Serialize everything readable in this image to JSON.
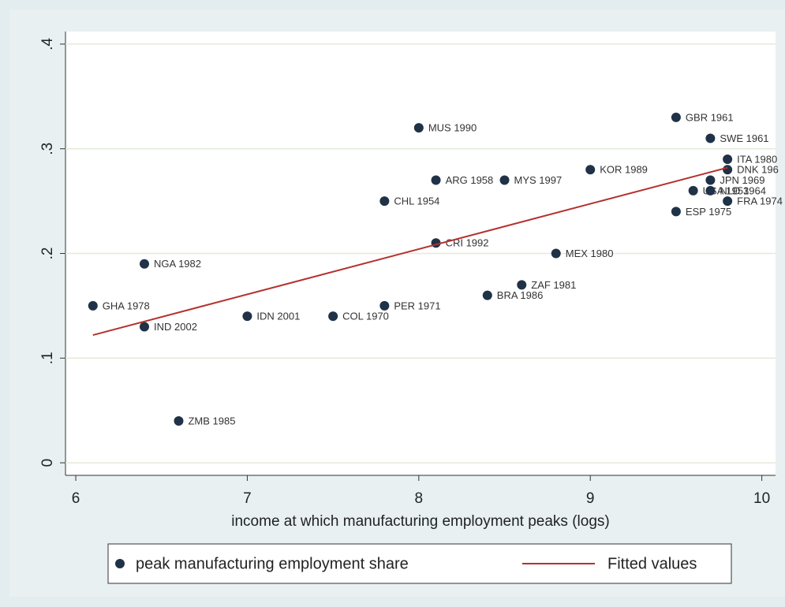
{
  "chart_data": {
    "type": "scatter",
    "xlabel": "income at which manufacturing employment peaks (logs)",
    "xlim": [
      5.94,
      10.08
    ],
    "xticks": [
      6,
      7,
      8,
      9,
      10
    ],
    "ylim": [
      -0.012,
      0.412
    ],
    "yticks": [
      0,
      {
        "value": 0.1,
        "label": ".1"
      },
      {
        "value": 0.2,
        "label": ".2"
      },
      {
        "value": 0.3,
        "label": ".3"
      },
      {
        "value": 0.4,
        "label": ".4"
      }
    ],
    "grid": true,
    "series": [
      {
        "name": "peak manufacturing employment share",
        "type": "scatter",
        "color": "#1f3247",
        "labels": [
          "GBR 1961",
          "SWE 1961",
          "ITA 1980",
          "DNK 196",
          "JPN 1969",
          "USA 1953",
          "NLD 1964",
          "FRA 1974",
          "ESP 1975",
          "KOR 1989",
          "MYS 1997",
          "ARG 1958",
          "MUS 1990",
          "CHL 1954",
          "CRI 1992",
          "MEX 1980",
          "ZAF 1981",
          "BRA 1986",
          "PER 1971",
          "COL 1970",
          "IDN 2001",
          "GHA 1978",
          "NGA 1982",
          "IND 2002",
          "ZMB 1985"
        ],
        "x": [
          9.5,
          9.7,
          9.8,
          9.8,
          9.7,
          9.6,
          9.7,
          9.8,
          9.5,
          9.0,
          8.5,
          8.1,
          8.0,
          7.8,
          8.1,
          8.8,
          8.6,
          8.4,
          7.8,
          7.5,
          7.0,
          6.1,
          6.4,
          6.4,
          6.6
        ],
        "values": [
          0.33,
          0.31,
          0.29,
          0.28,
          0.27,
          0.26,
          0.26,
          0.25,
          0.24,
          0.28,
          0.27,
          0.27,
          0.32,
          0.25,
          0.21,
          0.2,
          0.17,
          0.16,
          0.15,
          0.14,
          0.14,
          0.15,
          0.19,
          0.13,
          0.04
        ]
      },
      {
        "name": "Fitted values",
        "type": "line",
        "color": "#b5302e",
        "x": [
          6.1,
          9.8
        ],
        "values": [
          0.122,
          0.282
        ]
      }
    ]
  }
}
